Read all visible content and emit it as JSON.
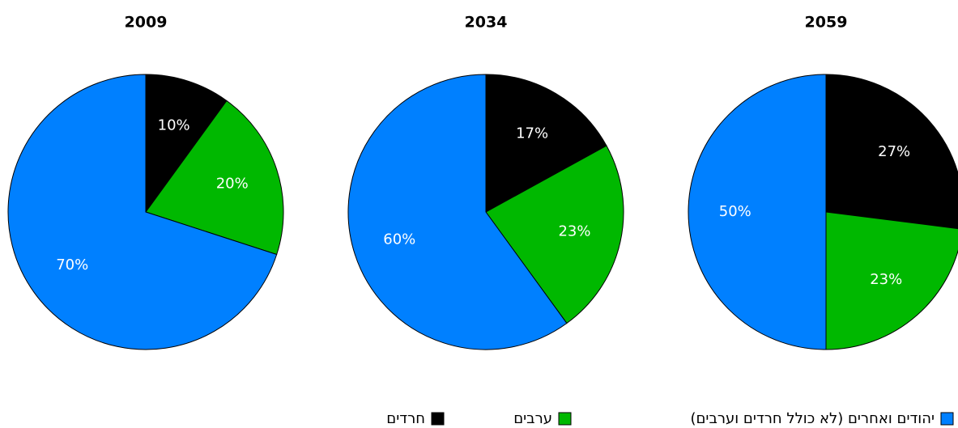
{
  "chart_data": [
    {
      "type": "pie",
      "title": "2009",
      "categories": [
        "חרדים",
        "ערבים",
        "יהודים ואחרים (לא כולל חרדים וערבים)"
      ],
      "values": [
        10,
        20,
        70
      ],
      "value_labels": [
        "10%",
        "20%",
        "70%"
      ],
      "colors": [
        "#000000",
        "#00b800",
        "#0080ff"
      ]
    },
    {
      "type": "pie",
      "title": "2034",
      "categories": [
        "חרדים",
        "ערבים",
        "יהודים ואחרים (לא כולל חרדים וערבים)"
      ],
      "values": [
        17,
        23,
        60
      ],
      "value_labels": [
        "17%",
        "23%",
        "60%"
      ],
      "colors": [
        "#000000",
        "#00b800",
        "#0080ff"
      ]
    },
    {
      "type": "pie",
      "title": "2059",
      "categories": [
        "חרדים",
        "ערבים",
        "יהודים ואחרים (לא כולל חרדים וערבים)"
      ],
      "values": [
        27,
        23,
        50
      ],
      "value_labels": [
        "27%",
        "23%",
        "50%"
      ],
      "colors": [
        "#000000",
        "#00b800",
        "#0080ff"
      ]
    }
  ]
}
